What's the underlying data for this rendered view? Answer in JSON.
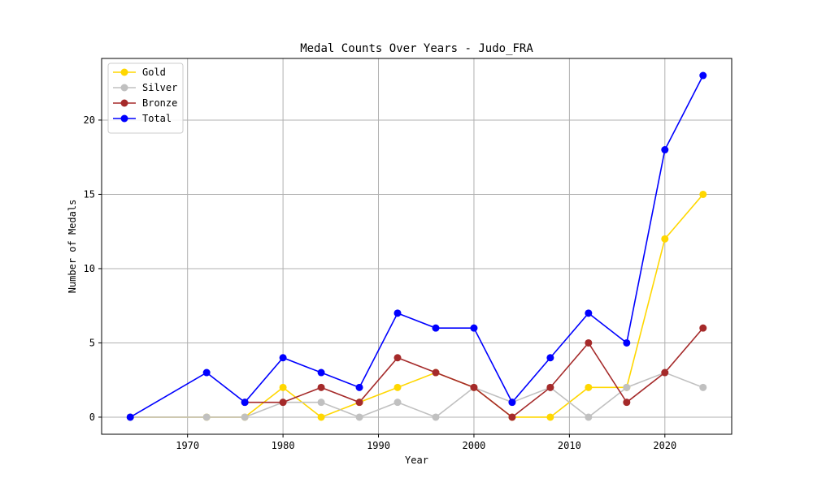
{
  "chart_data": {
    "type": "line",
    "title": "Medal Counts Over Years - Judo_FRA",
    "xlabel": "Year",
    "ylabel": "Number of Medals",
    "xlim": [
      1961,
      2027
    ],
    "ylim": [
      -1.15,
      24.15
    ],
    "x_ticks": [
      1970,
      1980,
      1990,
      2000,
      2010,
      2020
    ],
    "y_ticks": [
      0,
      5,
      10,
      15,
      20
    ],
    "grid": true,
    "legend_position": "top-left",
    "series": [
      {
        "name": "Gold",
        "color": "#ffd700",
        "points": [
          [
            1964,
            0
          ],
          [
            1972,
            0
          ],
          [
            1976,
            0
          ],
          [
            1980,
            2
          ],
          [
            1984,
            0
          ],
          [
            1988,
            1
          ],
          [
            1992,
            2
          ],
          [
            1996,
            3
          ],
          [
            2000,
            2
          ],
          [
            2004,
            0
          ],
          [
            2008,
            0
          ],
          [
            2012,
            2
          ],
          [
            2016,
            2
          ],
          [
            2020,
            12
          ],
          [
            2024,
            15
          ]
        ]
      },
      {
        "name": "Silver",
        "color": "#c0c0c0",
        "points": [
          [
            1964,
            0
          ],
          [
            1972,
            0
          ],
          [
            1976,
            0
          ],
          [
            1980,
            1
          ],
          [
            1984,
            1
          ],
          [
            1988,
            0
          ],
          [
            1992,
            1
          ],
          [
            1996,
            0
          ],
          [
            2000,
            2
          ],
          [
            2004,
            1
          ],
          [
            2008,
            2
          ],
          [
            2012,
            0
          ],
          [
            2016,
            2
          ],
          [
            2020,
            3
          ],
          [
            2024,
            2
          ]
        ]
      },
      {
        "name": "Bronze",
        "color": "#a52a2a",
        "points": [
          [
            1976,
            1
          ],
          [
            1980,
            1
          ],
          [
            1984,
            2
          ],
          [
            1988,
            1
          ],
          [
            1992,
            4
          ],
          [
            1996,
            3
          ],
          [
            2000,
            2
          ],
          [
            2004,
            0
          ],
          [
            2008,
            2
          ],
          [
            2012,
            5
          ],
          [
            2016,
            1
          ],
          [
            2020,
            3
          ],
          [
            2024,
            6
          ]
        ]
      },
      {
        "name": "Total",
        "color": "#0000ff",
        "points": [
          [
            1964,
            0
          ],
          [
            1972,
            3
          ],
          [
            1976,
            1
          ],
          [
            1980,
            4
          ],
          [
            1984,
            3
          ],
          [
            1988,
            2
          ],
          [
            1992,
            7
          ],
          [
            1996,
            6
          ],
          [
            2000,
            6
          ],
          [
            2004,
            1
          ],
          [
            2008,
            4
          ],
          [
            2012,
            7
          ],
          [
            2016,
            5
          ],
          [
            2020,
            18
          ],
          [
            2024,
            23
          ]
        ]
      }
    ]
  }
}
